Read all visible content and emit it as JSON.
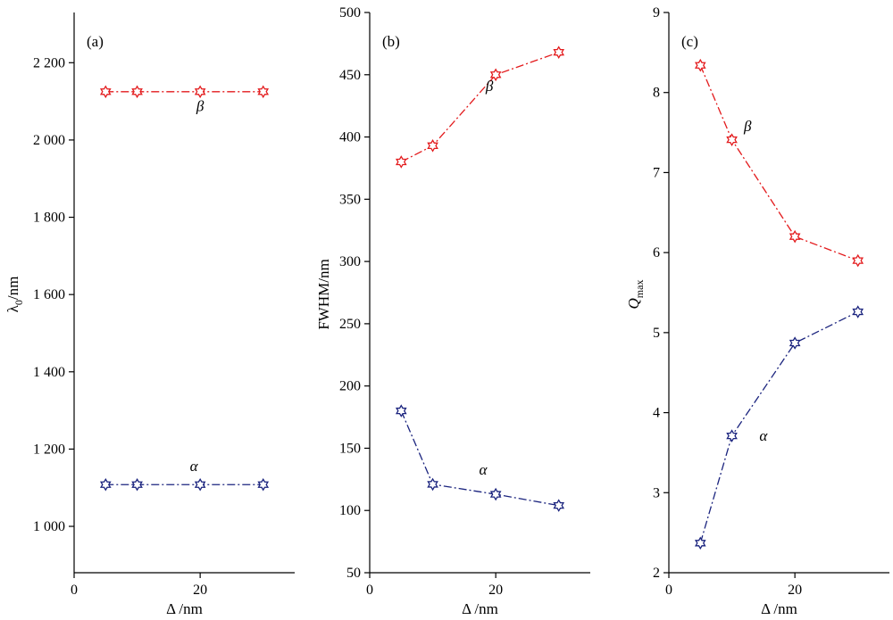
{
  "colors": {
    "alpha": "#1a237e",
    "beta": "#e31a1c",
    "axis": "#000000"
  },
  "chart_data": [
    {
      "type": "line",
      "panel_label": "(a)",
      "xlabel": "Δ /nm",
      "ylabel_main": "λ",
      "ylabel_sub": "0",
      "ylabel_tail": "/nm",
      "xlim": [
        0,
        35
      ],
      "ylim": [
        880,
        2330
      ],
      "xticks": [
        0,
        20
      ],
      "xtick_labels": [
        "0",
        "20"
      ],
      "yticks": [
        1000,
        1200,
        1400,
        1600,
        1800,
        2000,
        2200
      ],
      "ytick_labels": [
        "1 000",
        "1 200",
        "1 400",
        "1 600",
        "1 800",
        "2 000",
        "2 200"
      ],
      "series": [
        {
          "name": "α",
          "color": "#1a237e",
          "x": [
            5,
            10,
            20,
            30
          ],
          "y": [
            1108,
            1108,
            1108,
            1108
          ],
          "label_at": [
            19,
            1143
          ]
        },
        {
          "name": "β",
          "color": "#e31a1c",
          "x": [
            5,
            10,
            20,
            30
          ],
          "y": [
            2125,
            2125,
            2125,
            2125
          ],
          "label_at": [
            20,
            2075
          ]
        }
      ]
    },
    {
      "type": "line",
      "panel_label": "(b)",
      "xlabel": "Δ /nm",
      "ylabel_main": "FWHM/nm",
      "ylabel_sub": "",
      "ylabel_tail": "",
      "xlim": [
        0,
        35
      ],
      "ylim": [
        50,
        500
      ],
      "xticks": [
        0,
        20
      ],
      "xtick_labels": [
        "0",
        "20"
      ],
      "yticks": [
        50,
        100,
        150,
        200,
        250,
        300,
        350,
        400,
        450,
        500
      ],
      "ytick_labels": [
        "50",
        "100",
        "150",
        "200",
        "250",
        "300",
        "350",
        "400",
        "450",
        "500"
      ],
      "series": [
        {
          "name": "α",
          "color": "#1a237e",
          "x": [
            5,
            10,
            20,
            30
          ],
          "y": [
            180,
            121,
            113,
            104
          ],
          "label_at": [
            18,
            129
          ]
        },
        {
          "name": "β",
          "color": "#e31a1c",
          "x": [
            5,
            10,
            20,
            30
          ],
          "y": [
            380,
            393,
            450,
            468
          ],
          "label_at": [
            19,
            437
          ]
        }
      ]
    },
    {
      "type": "line",
      "panel_label": "(c)",
      "xlabel": "Δ /nm",
      "ylabel_main": "Q",
      "ylabel_sub": "max",
      "ylabel_tail": "",
      "xlim": [
        0,
        35
      ],
      "ylim": [
        2,
        9
      ],
      "xticks": [
        0,
        20
      ],
      "xtick_labels": [
        "0",
        "20"
      ],
      "yticks": [
        2,
        3,
        4,
        5,
        6,
        7,
        8,
        9
      ],
      "ytick_labels": [
        "2",
        "3",
        "4",
        "5",
        "6",
        "7",
        "8",
        "9"
      ],
      "series": [
        {
          "name": "α",
          "color": "#1a237e",
          "x": [
            5,
            10,
            20,
            30
          ],
          "y": [
            2.37,
            3.71,
            4.87,
            5.26
          ],
          "label_at": [
            15,
            3.65
          ]
        },
        {
          "name": "β",
          "color": "#e31a1c",
          "x": [
            5,
            10,
            20,
            30
          ],
          "y": [
            8.34,
            7.41,
            6.2,
            5.9
          ],
          "label_at": [
            12.5,
            7.52
          ]
        }
      ]
    }
  ]
}
